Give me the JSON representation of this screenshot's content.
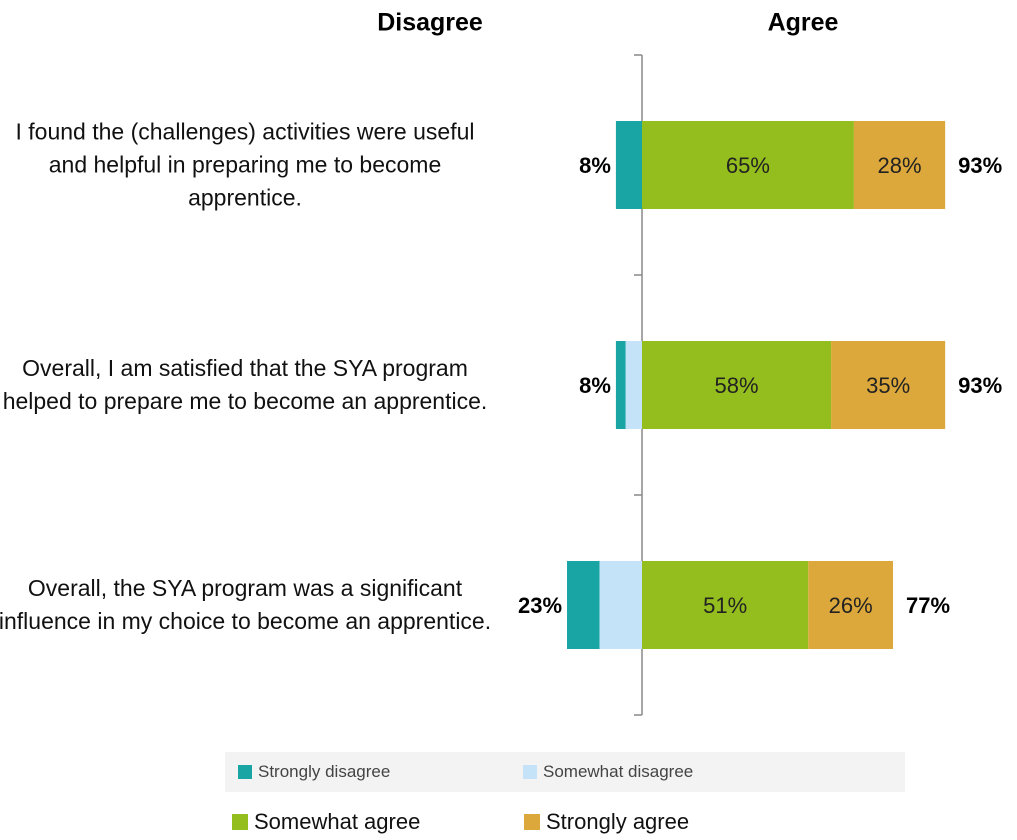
{
  "chart_data": {
    "type": "diverging_bar",
    "headers": {
      "left": "Disagree",
      "right": "Agree"
    },
    "categories": [
      "I found the (challenges) activities were useful and helpful in preparing me to become apprentice.",
      "Overall, I am satisfied that the SYA program helped to prepare me to become an apprentice.",
      "Overall, the SYA program was a significant influence in my choice to become an apprentice."
    ],
    "series": [
      {
        "name": "Strongly disagree",
        "color": "#1aa5a5",
        "side": "left",
        "values": [
          8,
          3,
          10
        ]
      },
      {
        "name": "Somewhat disagree",
        "color": "#c5e3f8",
        "side": "left",
        "values": [
          0,
          5,
          13
        ]
      },
      {
        "name": "Somewhat agree",
        "color": "#94be1e",
        "side": "right",
        "values": [
          65,
          58,
          51
        ],
        "value_labels": [
          "65%",
          "58%",
          "51%"
        ]
      },
      {
        "name": "Strongly agree",
        "color": "#dca83b",
        "side": "right",
        "values": [
          28,
          35,
          26
        ],
        "value_labels": [
          "28%",
          "35%",
          "26%"
        ]
      }
    ],
    "disagree_totals": {
      "values": [
        8,
        8,
        23
      ],
      "value_labels": [
        "8%",
        "8%",
        "23%"
      ]
    },
    "agree_totals": {
      "values": [
        93,
        93,
        77
      ],
      "value_labels": [
        "93%",
        "93%",
        "77%"
      ]
    },
    "xlim": [
      -30,
      110
    ]
  }
}
